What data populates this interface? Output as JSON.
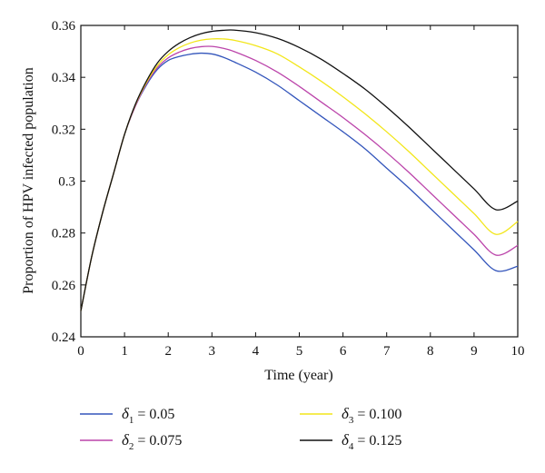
{
  "chart_data": {
    "type": "line",
    "xlabel": "Time (year)",
    "ylabel": "Proportion of HPV infected population",
    "xlim": [
      0,
      10
    ],
    "ylim": [
      0.24,
      0.36
    ],
    "xticks": [
      "0",
      "1",
      "2",
      "3",
      "4",
      "5",
      "6",
      "7",
      "8",
      "9",
      "10"
    ],
    "yticks": [
      "0.24",
      "0.26",
      "0.28",
      "0.3",
      "0.32",
      "0.34",
      "0.36"
    ],
    "grid": false,
    "legend_position": "bottom",
    "x": [
      0,
      0.25,
      0.5,
      0.75,
      1,
      1.25,
      1.5,
      1.75,
      2,
      2.25,
      2.5,
      2.75,
      3,
      3.25,
      3.5,
      4,
      4.5,
      5,
      5.5,
      6,
      6.5,
      7,
      7.5,
      8,
      8.5,
      9,
      9.5,
      10
    ],
    "series": [
      {
        "symbol": "δ",
        "subscript": "1",
        "value_text": " = 0.05",
        "color": "#3355bb",
        "values": [
          0.25,
          0.271,
          0.288,
          0.303,
          0.318,
          0.329,
          0.337,
          0.343,
          0.3465,
          0.348,
          0.3489,
          0.3493,
          0.349,
          0.3478,
          0.346,
          0.342,
          0.337,
          0.331,
          0.325,
          0.319,
          0.3125,
          0.305,
          0.2975,
          0.2895,
          0.2815,
          0.2735,
          0.2655,
          0.2672
        ]
      },
      {
        "symbol": "δ",
        "subscript": "2",
        "value_text": " = 0.075",
        "color": "#bb44aa",
        "values": [
          0.25,
          0.271,
          0.288,
          0.303,
          0.318,
          0.329,
          0.3375,
          0.3437,
          0.3475,
          0.3497,
          0.3511,
          0.3518,
          0.3519,
          0.3512,
          0.35,
          0.3465,
          0.342,
          0.3365,
          0.3305,
          0.3245,
          0.318,
          0.311,
          0.3035,
          0.2955,
          0.2875,
          0.2795,
          0.2715,
          0.2752
        ]
      },
      {
        "symbol": "δ",
        "subscript": "3",
        "value_text": " = 0.100",
        "color": "#f2e61a",
        "values": [
          0.25,
          0.271,
          0.288,
          0.303,
          0.318,
          0.3295,
          0.338,
          0.3445,
          0.3487,
          0.3514,
          0.3532,
          0.3543,
          0.3548,
          0.3548,
          0.3543,
          0.3522,
          0.349,
          0.344,
          0.3385,
          0.3325,
          0.326,
          0.319,
          0.3115,
          0.3035,
          0.2955,
          0.2875,
          0.2795,
          0.2844
        ]
      },
      {
        "symbol": "δ",
        "subscript": "4",
        "value_text": " = 0.125",
        "color": "#111111",
        "values": [
          0.25,
          0.271,
          0.288,
          0.303,
          0.318,
          0.3297,
          0.3385,
          0.3455,
          0.35,
          0.3531,
          0.3553,
          0.3568,
          0.3577,
          0.3581,
          0.3582,
          0.3572,
          0.355,
          0.3515,
          0.347,
          0.3415,
          0.3355,
          0.3285,
          0.321,
          0.313,
          0.305,
          0.297,
          0.289,
          0.2923
        ]
      }
    ]
  }
}
